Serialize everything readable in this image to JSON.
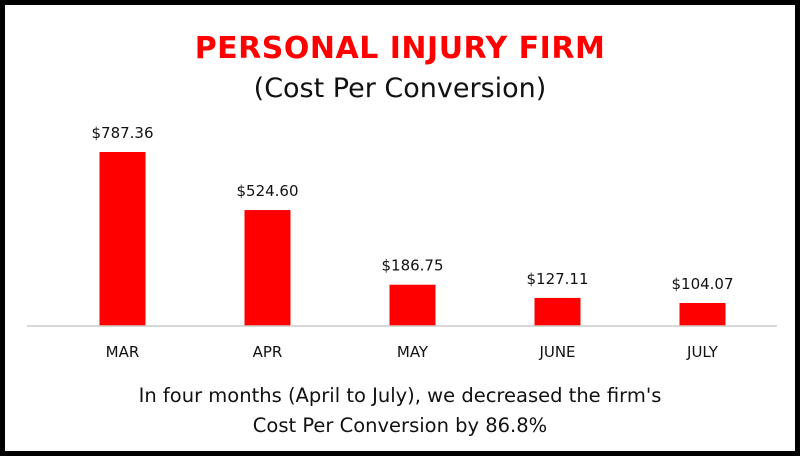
{
  "chart_data": {
    "type": "bar",
    "title": "PERSONAL INJURY FIRM",
    "subtitle": "(Cost Per Conversion)",
    "categories": [
      "MAR",
      "APR",
      "MAY",
      "JUNE",
      "JULY"
    ],
    "values": [
      787.36,
      524.6,
      186.75,
      127.11,
      104.07
    ],
    "value_labels": [
      "$787.36",
      "$524.60",
      "$186.75",
      "$127.11",
      "$104.07"
    ],
    "xlabel": "",
    "ylabel": "",
    "ylim": [
      0,
      787.36
    ],
    "grid": false,
    "bar_color": "#ff0000",
    "baseline_color": "#cccccc"
  },
  "caption": {
    "line1": "In four months (April to July), we decreased the firm's",
    "line2": "Cost Per Conversion by 86.8%"
  }
}
